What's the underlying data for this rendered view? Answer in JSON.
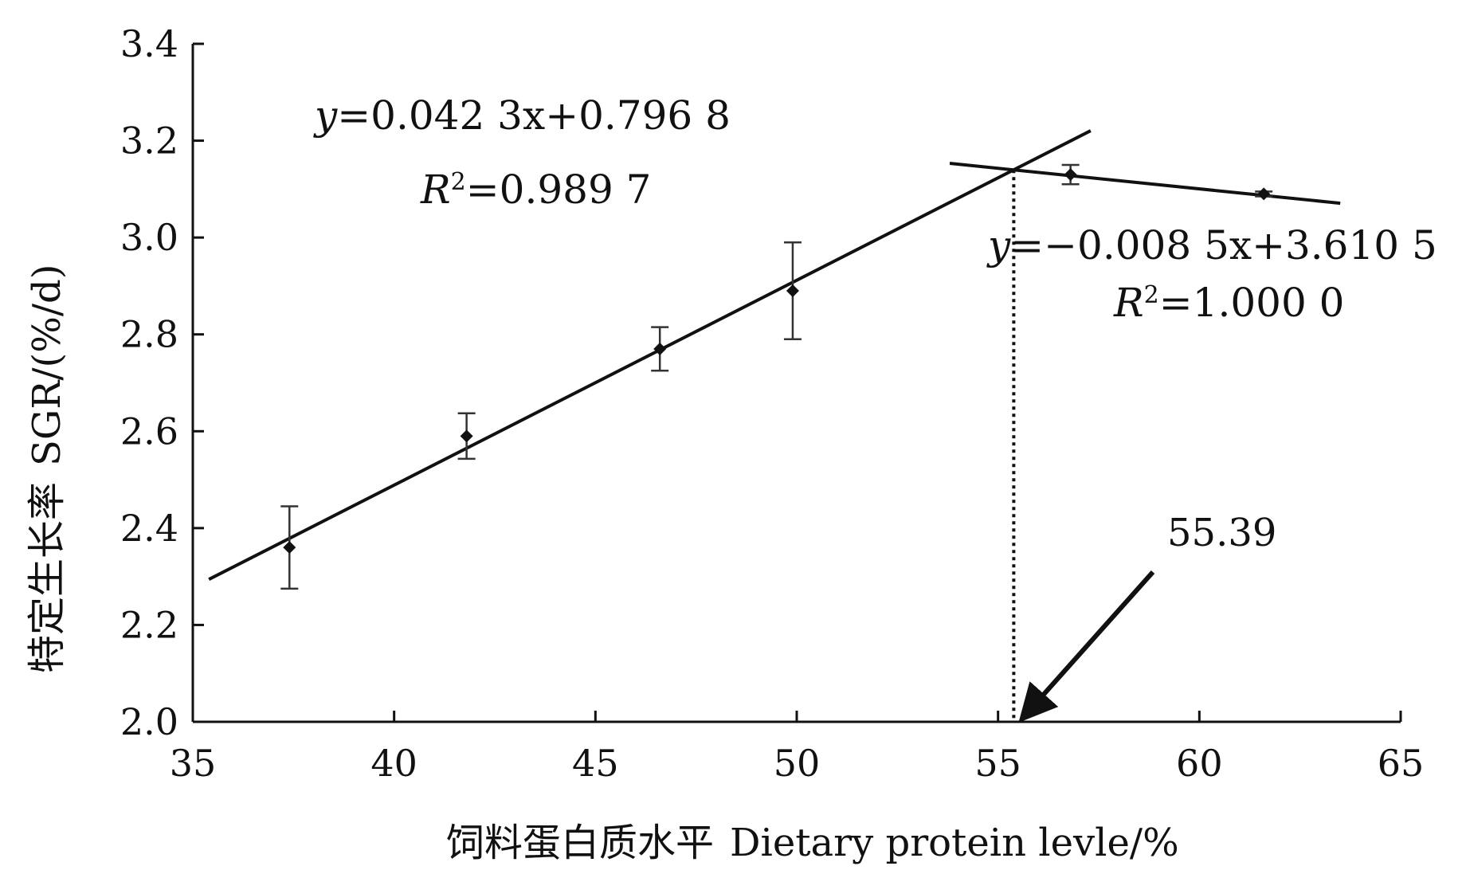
{
  "chart_data": {
    "type": "scatter",
    "xlabel_cn": "饲料蛋白质水平",
    "xlabel_en": "Dietary protein levle/%",
    "ylabel_cn": "特定生长率",
    "ylabel_en": "SGR/(%/d)",
    "xlim": [
      35,
      65
    ],
    "ylim": [
      2.0,
      3.4
    ],
    "x_ticks": [
      "35",
      "40",
      "45",
      "50",
      "55",
      "60",
      "65"
    ],
    "y_ticks": [
      "2.0",
      "2.2",
      "2.4",
      "2.6",
      "2.8",
      "3.0",
      "3.2",
      "3.4"
    ],
    "points": [
      {
        "x": 37.4,
        "y": 2.36,
        "err": 0.085
      },
      {
        "x": 41.8,
        "y": 2.59,
        "err": 0.047
      },
      {
        "x": 46.6,
        "y": 2.77,
        "err": 0.045
      },
      {
        "x": 49.9,
        "y": 2.89,
        "err": 0.1
      },
      {
        "x": 56.8,
        "y": 3.13,
        "err": 0.02
      },
      {
        "x": 61.6,
        "y": 3.09,
        "err": 0.005
      }
    ],
    "fit_lines": [
      {
        "slope": 0.0423,
        "intercept": 0.7968,
        "x_from": 35.4,
        "x_to": 57.3,
        "equation": "=0.042 3x+0.796 8",
        "r2": "=0.989 7"
      },
      {
        "slope": -0.0085,
        "intercept": 3.6105,
        "x_from": 53.8,
        "x_to": 63.5,
        "equation": "=−0.008 5x+3.610 5",
        "r2": "=1.000 0"
      }
    ],
    "breakpoint": {
      "x": 55.39,
      "label": "55.39"
    },
    "grid": false
  }
}
